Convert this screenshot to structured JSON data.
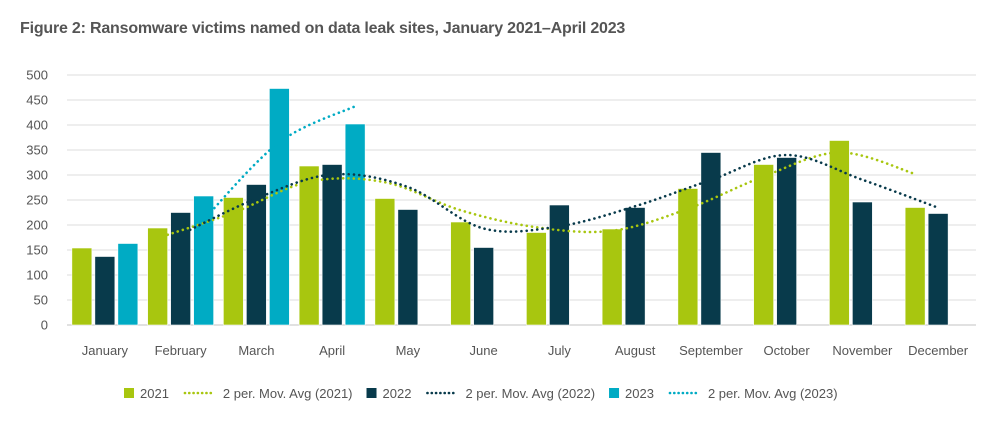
{
  "chart_data": {
    "type": "bar",
    "title": "Figure 2: Ransomware victims named on data leak sites, January 2021–April 2023",
    "xlabel": "",
    "ylabel": "",
    "ylim": [
      0,
      500
    ],
    "yticks": [
      0,
      50,
      100,
      150,
      200,
      250,
      300,
      350,
      400,
      450,
      500
    ],
    "grid": true,
    "legend_position": "bottom",
    "categories": [
      "January",
      "February",
      "March",
      "April",
      "May",
      "June",
      "July",
      "August",
      "September",
      "October",
      "November",
      "December"
    ],
    "series": [
      {
        "name": "2021",
        "color": "#a8c60f",
        "values": [
          154,
          194,
          255,
          318,
          253,
          206,
          185,
          192,
          273,
          321,
          369,
          235
        ]
      },
      {
        "name": "2022",
        "color": "#083a4b",
        "values": [
          137,
          225,
          281,
          321,
          231,
          155,
          240,
          235,
          345,
          335,
          246,
          223
        ]
      },
      {
        "name": "2023",
        "color": "#00abc4",
        "values": [
          163,
          258,
          473,
          402,
          null,
          null,
          null,
          null,
          null,
          null,
          null,
          null
        ]
      }
    ],
    "trendlines": [
      {
        "name": "2 per. Mov. Avg (2021)",
        "series": "2021",
        "period": 2,
        "style": "dotted",
        "color": "#a8c60f"
      },
      {
        "name": "2 per. Mov. Avg (2022)",
        "series": "2022",
        "period": 2,
        "style": "dotted",
        "color": "#083a4b"
      },
      {
        "name": "2 per. Mov. Avg (2023)",
        "series": "2023",
        "period": 2,
        "style": "dotted",
        "color": "#00abc4"
      }
    ],
    "legend": [
      {
        "label": "2021",
        "kind": "bar",
        "color": "#a8c60f"
      },
      {
        "label": "2 per. Mov. Avg (2021)",
        "kind": "dotted",
        "color": "#a8c60f"
      },
      {
        "label": "2022",
        "kind": "bar",
        "color": "#083a4b"
      },
      {
        "label": "2 per. Mov. Avg (2022)",
        "kind": "dotted",
        "color": "#083a4b"
      },
      {
        "label": "2023",
        "kind": "bar",
        "color": "#00abc4"
      },
      {
        "label": "2 per. Mov. Avg (2023)",
        "kind": "dotted",
        "color": "#00abc4"
      }
    ]
  }
}
